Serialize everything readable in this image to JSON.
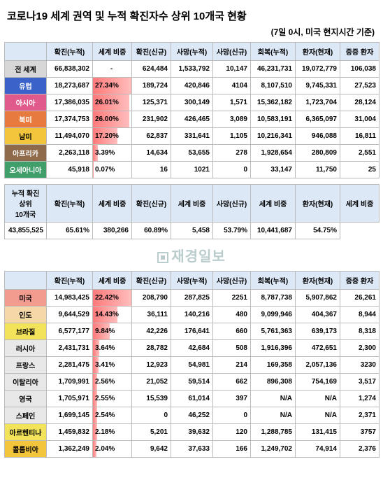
{
  "title": "코로나19 세계 권역 및 누적 확진자수 상위 10개국 현황",
  "subtitle": "(7일 0시, 미국 현지시간 기준)",
  "watermark": "재경일보",
  "headers": [
    "확진(누적)",
    "세계 비중",
    "확진(신규)",
    "사망(누적)",
    "사망(신규)",
    "회복(누적)",
    "환자(현재)",
    "중증 환자"
  ],
  "summary_headers": [
    "확진(누적)",
    "세계 비중",
    "확진(신규)",
    "세계 비중",
    "사망(신규)",
    "세계 비중",
    "환자(현재)",
    "세계 비중"
  ],
  "summary_label1": "누적 확진",
  "summary_label2": "상위",
  "summary_label3": "10개국",
  "colors": {
    "header_bg": "#dde8f7",
    "bar_high": "#ff7a7a",
    "region": {
      "world": "#d7d7d7",
      "europe": "#3a62c9",
      "asia": "#e05a8c",
      "namerica": "#e67a3f",
      "samerica": "#f2c53d",
      "africa": "#8f6a4a",
      "oceania": "#3f9e6a",
      "summary": "#dde8f7",
      "usa": "#f29c8f",
      "india": "#f5d7a8",
      "brazil": "#f2e35a",
      "russia": "#e8e8e8",
      "france": "#e8e8e8",
      "italy": "#e8e8e8",
      "uk": "#e8e8e8",
      "spain": "#e8e8e8",
      "argentina": "#f2e35a",
      "colombia": "#f2c53d"
    }
  },
  "table1": [
    {
      "k": "world",
      "label": "전 세계",
      "c": "#d7d7d7",
      "tc": "#000",
      "v": [
        "66,838,302",
        "-",
        "624,484",
        "1,533,792",
        "10,147",
        "46,231,731",
        "19,072,779",
        "106,038"
      ],
      "bw": 0
    },
    {
      "k": "europe",
      "label": "유럽",
      "c": "#3a62c9",
      "tc": "#fff",
      "v": [
        "18,273,687",
        "27.34%",
        "189,724",
        "420,846",
        "4104",
        "8,107,510",
        "9,745,331",
        "27,523"
      ],
      "bw": 100
    },
    {
      "k": "asia",
      "label": "아시아",
      "c": "#e05a8c",
      "tc": "#fff",
      "v": [
        "17,386,035",
        "26.01%",
        "125,371",
        "300,149",
        "1,571",
        "15,362,182",
        "1,723,704",
        "28,124"
      ],
      "bw": 95
    },
    {
      "k": "namerica",
      "label": "북미",
      "c": "#e67a3f",
      "tc": "#fff",
      "v": [
        "17,374,753",
        "26.00%",
        "231,902",
        "426,465",
        "3,089",
        "10,583,191",
        "6,365,097",
        "31,004"
      ],
      "bw": 95
    },
    {
      "k": "samerica",
      "label": "남미",
      "c": "#f2c53d",
      "tc": "#000",
      "v": [
        "11,494,070",
        "17.20%",
        "62,837",
        "331,641",
        "1,105",
        "10,216,341",
        "946,088",
        "16,811"
      ],
      "bw": 63
    },
    {
      "k": "africa",
      "label": "아프리카",
      "c": "#8f6a4a",
      "tc": "#fff",
      "v": [
        "2,263,118",
        "3.39%",
        "14,634",
        "53,655",
        "278",
        "1,928,654",
        "280,809",
        "2,551"
      ],
      "bw": 12
    },
    {
      "k": "oceania",
      "label": "오세아니아",
      "c": "#3f9e6a",
      "tc": "#fff",
      "v": [
        "45,918",
        "0.07%",
        "16",
        "1021",
        "0",
        "33,147",
        "11,750",
        "25"
      ],
      "bw": 1
    }
  ],
  "summary": {
    "v": [
      "43,855,525",
      "65.61%",
      "380,266",
      "60.89%",
      "5,458",
      "53.79%",
      "10,441,687",
      "54.75%"
    ]
  },
  "table2": [
    {
      "k": "usa",
      "label": "미국",
      "c": "#f29c8f",
      "tc": "#000",
      "v": [
        "14,983,425",
        "22.42%",
        "208,790",
        "287,825",
        "2251",
        "8,787,738",
        "5,907,862",
        "26,261"
      ],
      "bw": 100
    },
    {
      "k": "india",
      "label": "인도",
      "c": "#f5d7a8",
      "tc": "#000",
      "v": [
        "9,644,529",
        "14.43%",
        "36,111",
        "140,216",
        "480",
        "9,099,946",
        "404,367",
        "8,944"
      ],
      "bw": 64
    },
    {
      "k": "brazil",
      "label": "브라질",
      "c": "#f2e35a",
      "tc": "#000",
      "v": [
        "6,577,177",
        "9.84%",
        "42,226",
        "176,641",
        "660",
        "5,761,363",
        "639,173",
        "8,318"
      ],
      "bw": 44
    },
    {
      "k": "russia",
      "label": "러시아",
      "c": "#e8e8e8",
      "tc": "#000",
      "v": [
        "2,431,731",
        "3.64%",
        "28,782",
        "42,684",
        "508",
        "1,916,396",
        "472,651",
        "2,300"
      ],
      "bw": 16
    },
    {
      "k": "france",
      "label": "프랑스",
      "c": "#e8e8e8",
      "tc": "#000",
      "v": [
        "2,281,475",
        "3.41%",
        "12,923",
        "54,981",
        "214",
        "169,358",
        "2,057,136",
        "3230"
      ],
      "bw": 15
    },
    {
      "k": "italy",
      "label": "이탈리아",
      "c": "#e8e8e8",
      "tc": "#000",
      "v": [
        "1,709,991",
        "2.56%",
        "21,052",
        "59,514",
        "662",
        "896,308",
        "754,169",
        "3,517"
      ],
      "bw": 11
    },
    {
      "k": "uk",
      "label": "영국",
      "c": "#e8e8e8",
      "tc": "#000",
      "v": [
        "1,705,971",
        "2.55%",
        "15,539",
        "61,014",
        "397",
        "N/A",
        "N/A",
        "1,274"
      ],
      "bw": 11
    },
    {
      "k": "spain",
      "label": "스페인",
      "c": "#e8e8e8",
      "tc": "#000",
      "v": [
        "1,699,145",
        "2.54%",
        "0",
        "46,252",
        "0",
        "N/A",
        "N/A",
        "2,371"
      ],
      "bw": 11
    },
    {
      "k": "argentina",
      "label": "아르헨티나",
      "c": "#f2e35a",
      "tc": "#000",
      "v": [
        "1,459,832",
        "2.18%",
        "5,201",
        "39,632",
        "120",
        "1,288,785",
        "131,415",
        "3757"
      ],
      "bw": 10
    },
    {
      "k": "colombia",
      "label": "콜롬비아",
      "c": "#f2c53d",
      "tc": "#000",
      "v": [
        "1,362,249",
        "2.04%",
        "9,642",
        "37,633",
        "166",
        "1,249,702",
        "74,914",
        "2,376"
      ],
      "bw": 9
    }
  ]
}
